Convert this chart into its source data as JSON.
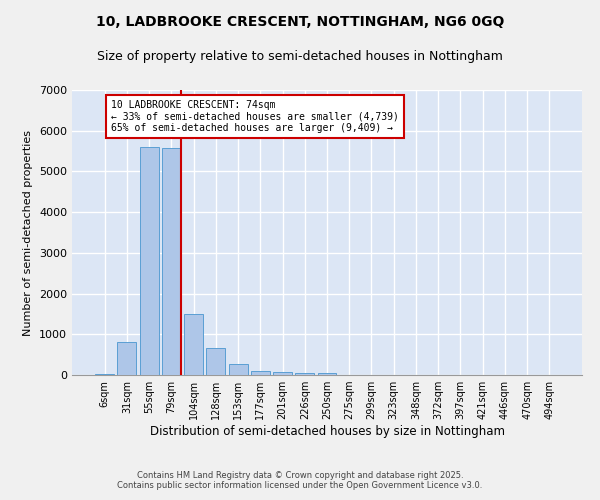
{
  "title1": "10, LADBROOKE CRESCENT, NOTTINGHAM, NG6 0GQ",
  "title2": "Size of property relative to semi-detached houses in Nottingham",
  "xlabel": "Distribution of semi-detached houses by size in Nottingham",
  "ylabel": "Number of semi-detached properties",
  "categories": [
    "6sqm",
    "31sqm",
    "55sqm",
    "79sqm",
    "104sqm",
    "128sqm",
    "153sqm",
    "177sqm",
    "201sqm",
    "226sqm",
    "250sqm",
    "275sqm",
    "299sqm",
    "323sqm",
    "348sqm",
    "372sqm",
    "397sqm",
    "421sqm",
    "446sqm",
    "470sqm",
    "494sqm"
  ],
  "bar_values": [
    30,
    820,
    5600,
    5580,
    1490,
    660,
    260,
    110,
    75,
    50,
    60,
    0,
    0,
    0,
    0,
    0,
    0,
    0,
    0,
    0,
    0
  ],
  "bar_color": "#aec6e8",
  "bar_edge_color": "#5a9fd4",
  "background_color": "#dce6f5",
  "grid_color": "#ffffff",
  "vline_color": "#cc0000",
  "annotation_text": "10 LADBROOKE CRESCENT: 74sqm\n← 33% of semi-detached houses are smaller (4,739)\n65% of semi-detached houses are larger (9,409) →",
  "annotation_box_color": "#ffffff",
  "annotation_box_edge": "#cc0000",
  "ylim": [
    0,
    7000
  ],
  "yticks": [
    0,
    1000,
    2000,
    3000,
    4000,
    5000,
    6000,
    7000
  ],
  "footer": "Contains HM Land Registry data © Crown copyright and database right 2025.\nContains public sector information licensed under the Open Government Licence v3.0.",
  "title_fontsize": 10,
  "subtitle_fontsize": 9,
  "fig_facecolor": "#f0f0f0"
}
